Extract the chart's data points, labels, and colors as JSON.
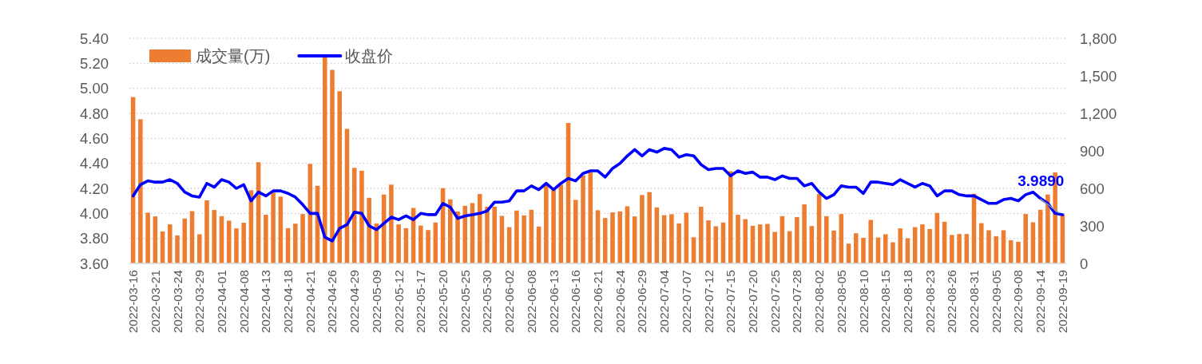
{
  "chart_data": {
    "type": "bar",
    "categories": [
      "2022-03-16",
      null,
      null,
      "2022-03-21",
      null,
      null,
      "2022-03-24",
      null,
      null,
      "2022-03-29",
      null,
      null,
      "2022-04-01",
      null,
      null,
      "2022-04-08",
      null,
      null,
      "2022-04-13",
      null,
      null,
      "2022-04-18",
      null,
      null,
      "2022-04-21",
      null,
      null,
      "2022-04-26",
      null,
      null,
      "2022-04-29",
      null,
      null,
      "2022-05-09",
      null,
      null,
      "2022-05-12",
      null,
      null,
      "2022-05-17",
      null,
      null,
      "2022-05-20",
      null,
      null,
      "2022-05-25",
      null,
      null,
      "2022-05-30",
      null,
      null,
      "2022-06-02",
      null,
      null,
      "2022-06-08",
      null,
      null,
      "2022-06-13",
      null,
      null,
      "2022-06-16",
      null,
      null,
      "2022-06-21",
      null,
      null,
      "2022-06-24",
      null,
      null,
      "2022-06-29",
      null,
      null,
      "2022-07-04",
      null,
      null,
      "2022-07-07",
      null,
      null,
      "2022-07-12",
      null,
      null,
      "2022-07-15",
      null,
      null,
      "2022-07-20",
      null,
      null,
      "2022-07-25",
      null,
      null,
      "2022-07-28",
      null,
      null,
      "2022-08-02",
      null,
      null,
      "2022-08-05",
      null,
      null,
      "2022-08-10",
      null,
      null,
      "2022-08-15",
      null,
      null,
      "2022-08-18",
      null,
      null,
      "2022-08-23",
      null,
      null,
      "2022-08-26",
      null,
      null,
      "2022-08-31",
      null,
      null,
      "2022-09-05",
      null,
      null,
      "2022-09-08",
      null,
      null,
      "2022-09-14",
      null,
      null,
      "2022-09-19"
    ],
    "series": [
      {
        "name": "成交量(万)",
        "axis": "y2",
        "color": "#ed7d31",
        "values": [
          1330,
          1153,
          406,
          376,
          256,
          312,
          224,
          359,
          418,
          233,
          504,
          427,
          378,
          342,
          280,
          325,
          585,
          809,
          389,
          576,
          534,
          282,
          318,
          395,
          796,
          621,
          1661,
          1548,
          1377,
          1076,
          764,
          741,
          525,
          320,
          551,
          630,
          312,
          282,
          444,
          303,
          267,
          327,
          602,
          512,
          416,
          461,
          483,
          555,
          453,
          453,
          380,
          290,
          423,
          384,
          429,
          295,
          626,
          587,
          630,
          1123,
          508,
          705,
          728,
          425,
          363,
          408,
          416,
          457,
          376,
          547,
          570,
          448,
          386,
          393,
          320,
          406,
          209,
          453,
          344,
          297,
          327,
          737,
          389,
          354,
          301,
          312,
          316,
          252,
          378,
          258,
          371,
          472,
          299,
          555,
          378,
          263,
          395,
          158,
          241,
          205,
          348,
          207,
          233,
          169,
          280,
          201,
          290,
          312,
          275,
          404,
          333,
          228,
          235,
          235,
          557,
          322,
          265,
          218,
          265,
          186,
          173,
          395,
          329,
          429,
          551,
          728,
          391
        ]
      },
      {
        "name": "收盘价",
        "type": "line",
        "color": "#0000ff",
        "values": [
          4.14,
          4.23,
          4.26,
          4.25,
          4.25,
          4.27,
          4.24,
          4.17,
          4.14,
          4.13,
          4.24,
          4.21,
          4.27,
          4.25,
          4.2,
          4.23,
          4.1,
          4.17,
          4.14,
          4.18,
          4.18,
          4.16,
          4.13,
          4.07,
          4.0,
          4.0,
          3.81,
          3.78,
          3.88,
          3.91,
          4.01,
          4.0,
          3.9,
          3.87,
          3.92,
          3.97,
          3.95,
          3.98,
          3.95,
          4.0,
          3.99,
          3.99,
          4.08,
          4.05,
          3.96,
          3.98,
          3.99,
          4.0,
          4.02,
          4.09,
          4.09,
          4.1,
          4.18,
          4.18,
          4.22,
          4.19,
          4.24,
          4.19,
          4.24,
          4.28,
          4.26,
          4.32,
          4.34,
          4.34,
          4.29,
          4.36,
          4.4,
          4.46,
          4.51,
          4.46,
          4.51,
          4.49,
          4.52,
          4.51,
          4.45,
          4.47,
          4.46,
          4.39,
          4.35,
          4.36,
          4.36,
          4.3,
          4.34,
          4.32,
          4.33,
          4.29,
          4.29,
          4.27,
          4.3,
          4.28,
          4.28,
          4.22,
          4.24,
          4.17,
          4.12,
          4.15,
          4.22,
          4.21,
          4.21,
          4.16,
          4.25,
          4.25,
          4.24,
          4.23,
          4.27,
          4.24,
          4.21,
          4.24,
          4.22,
          4.14,
          4.18,
          4.18,
          4.15,
          4.14,
          4.14,
          4.11,
          4.08,
          4.08,
          4.11,
          4.12,
          4.1,
          4.15,
          4.17,
          4.12,
          4.08,
          4.0,
          3.989
        ]
      }
    ],
    "ylim": [
      3.6,
      5.4
    ],
    "yticks": [
      {
        "value": 3.6,
        "label": "3.60"
      },
      {
        "value": 3.8,
        "label": "3.80"
      },
      {
        "value": 4.0,
        "label": "4.00"
      },
      {
        "value": 4.2,
        "label": "4.20"
      },
      {
        "value": 4.4,
        "label": "4.40"
      },
      {
        "value": 4.6,
        "label": "4.60"
      },
      {
        "value": 4.8,
        "label": "4.80"
      },
      {
        "value": 5.0,
        "label": "5.00"
      },
      {
        "value": 5.2,
        "label": "5.20"
      },
      {
        "value": 5.4,
        "label": "5.40"
      }
    ],
    "y2lim": [
      0,
      1800
    ],
    "y2ticks": [
      0,
      300,
      600,
      900,
      {
        "value": 1200,
        "label": "1,200"
      },
      {
        "value": 1500,
        "label": "1,500"
      },
      {
        "value": 1800,
        "label": "1,800"
      }
    ],
    "grid": "y",
    "legend": "top left",
    "annotations": [
      {
        "text": "3.9890",
        "x": "2022-09-19",
        "y": 3.989
      }
    ]
  }
}
